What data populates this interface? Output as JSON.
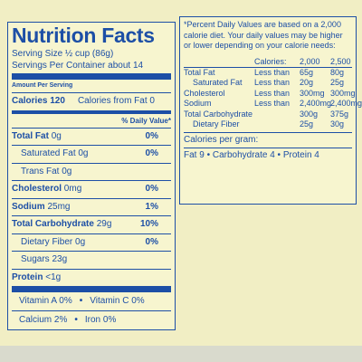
{
  "left": {
    "title": "Nutrition Facts",
    "serving_size": "Serving Size ½ cup (86g)",
    "servings": "Servings Per Container about 14",
    "amount_per_serving": "Amount Per Serving",
    "calories": "Calories 120",
    "calories_from_fat": "Calories from Fat 0",
    "daily_value_header": "% Daily Value*",
    "nutrients": [
      {
        "name": "Total Fat",
        "amount": "0g",
        "dv": "0%",
        "sub": [
          {
            "name": "Saturated Fat",
            "amount": "0g",
            "dv": "0%"
          },
          {
            "name": "Trans Fat",
            "amount": "0g"
          }
        ]
      },
      {
        "name": "Cholesterol",
        "amount": "0mg",
        "dv": "0%"
      },
      {
        "name": "Sodium",
        "amount": "25mg",
        "dv": "1%"
      },
      {
        "name": "Total Carbohydrate",
        "amount": "29g",
        "dv": "10%",
        "sub": [
          {
            "name": "Dietary Fiber",
            "amount": "0g",
            "dv": "0%"
          },
          {
            "name": "Sugars",
            "amount": "23g"
          }
        ]
      },
      {
        "name": "Protein",
        "amount": "<1g"
      }
    ],
    "vitamins": [
      [
        "Vitamin A 0%",
        "Vitamin C 0%"
      ],
      [
        "Calcium 2%",
        "Iron 0%"
      ]
    ]
  },
  "right": {
    "footnote": "*Percent Daily Values are based on a 2,000 calorie diet. Your daily values may be higher or lower depending on your calorie needs:",
    "table": {
      "header": [
        "Calories:",
        "2,000",
        "2,500"
      ],
      "rows": [
        {
          "name": "Total Fat",
          "limit": "Less than",
          "v2000": "65g",
          "v2500": "80g",
          "sub": [
            {
              "name": "Saturated Fat",
              "limit": "Less than",
              "v2000": "20g",
              "v2500": "25g"
            }
          ]
        },
        {
          "name": "Cholesterol",
          "limit": "Less than",
          "v2000": "300mg",
          "v2500": "300mg"
        },
        {
          "name": "Sodium",
          "limit": "Less than",
          "v2000": "2,400mg",
          "v2500": "2,400mg"
        },
        {
          "name": "Total Carbohydrate",
          "v2000": "300g",
          "v2500": "375g",
          "sub": [
            {
              "name": "Dietary Fiber",
              "v2000": "25g",
              "v2500": "30g"
            }
          ]
        }
      ]
    },
    "calories_per_gram_title": "Calories per gram:",
    "calories_per_gram": "Fat 9 • Carbohydrate 4 • Protein 4"
  }
}
